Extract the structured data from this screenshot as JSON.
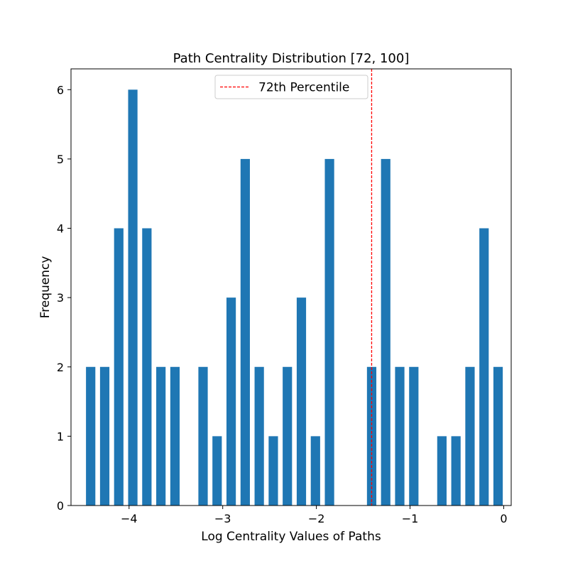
{
  "chart_data": {
    "type": "bar",
    "title": "Path Centrality Distribution [72, 100]",
    "xlabel": "Log Centrality Values of Paths",
    "ylabel": "Frequency",
    "xlim": [
      -4.62,
      0.08
    ],
    "ylim": [
      0,
      6.3
    ],
    "bar_width": 0.1,
    "xticks": [
      {
        "value": -4,
        "label": "−4"
      },
      {
        "value": -3,
        "label": "−3"
      },
      {
        "value": -2,
        "label": "−2"
      },
      {
        "value": -1,
        "label": "−1"
      },
      {
        "value": 0,
        "label": "0"
      }
    ],
    "yticks": [
      {
        "value": 0,
        "label": "0"
      },
      {
        "value": 1,
        "label": "1"
      },
      {
        "value": 2,
        "label": "2"
      },
      {
        "value": 3,
        "label": "3"
      },
      {
        "value": 4,
        "label": "4"
      },
      {
        "value": 5,
        "label": "5"
      },
      {
        "value": 6,
        "label": "6"
      }
    ],
    "bars": [
      {
        "x": -4.41,
        "value": 2
      },
      {
        "x": -4.26,
        "value": 2
      },
      {
        "x": -4.11,
        "value": 4
      },
      {
        "x": -3.96,
        "value": 6
      },
      {
        "x": -3.81,
        "value": 4
      },
      {
        "x": -3.66,
        "value": 2
      },
      {
        "x": -3.51,
        "value": 2
      },
      {
        "x": -3.21,
        "value": 2
      },
      {
        "x": -3.06,
        "value": 1
      },
      {
        "x": -2.91,
        "value": 3
      },
      {
        "x": -2.76,
        "value": 5
      },
      {
        "x": -2.61,
        "value": 2
      },
      {
        "x": -2.46,
        "value": 1
      },
      {
        "x": -2.31,
        "value": 2
      },
      {
        "x": -2.16,
        "value": 3
      },
      {
        "x": -2.01,
        "value": 1
      },
      {
        "x": -1.86,
        "value": 5
      },
      {
        "x": -1.41,
        "value": 2
      },
      {
        "x": -1.26,
        "value": 5
      },
      {
        "x": -1.11,
        "value": 2
      },
      {
        "x": -0.96,
        "value": 2
      },
      {
        "x": -0.66,
        "value": 1
      },
      {
        "x": -0.51,
        "value": 1
      },
      {
        "x": -0.36,
        "value": 2
      },
      {
        "x": -0.21,
        "value": 4
      },
      {
        "x": -0.06,
        "value": 2
      }
    ],
    "reference_line": {
      "x": -1.41,
      "label": "72th Percentile",
      "style": "dashed"
    },
    "legend_position": "top-center",
    "grid": false,
    "colors": {
      "bar": "#1f77b4",
      "reference_line": "#ff0000",
      "axes": "#000000"
    }
  }
}
